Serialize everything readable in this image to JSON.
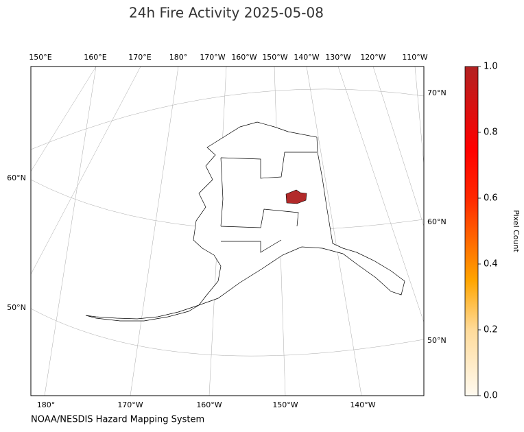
{
  "title": "24h Fire Activity 2025-05-08",
  "credit": "NOAA/NESDIS Hazard Mapping System",
  "graticule": {
    "top": [
      "150°E",
      "160°E",
      "170°E",
      "180°",
      "170°W",
      "160°W",
      "150°W",
      "140°W",
      "130°W",
      "120°W",
      "110°W"
    ],
    "bottom": [
      "180°",
      "170°W",
      "160°W",
      "150°W",
      "140°W"
    ],
    "left": [
      "60°N",
      "50°N"
    ],
    "right": [
      "70°N",
      "60°N",
      "50°N"
    ]
  },
  "colorbar": {
    "label": "Pixel Count",
    "lim": [
      0,
      1
    ],
    "ticks": [
      {
        "value": 0,
        "label": "0.0"
      },
      {
        "value": 0.2,
        "label": "0.2"
      },
      {
        "value": 0.4,
        "label": "0.4"
      },
      {
        "value": 0.6,
        "label": "0.6"
      },
      {
        "value": 0.8,
        "label": "0.8"
      },
      {
        "value": 1,
        "label": "1.0"
      }
    ]
  }
}
